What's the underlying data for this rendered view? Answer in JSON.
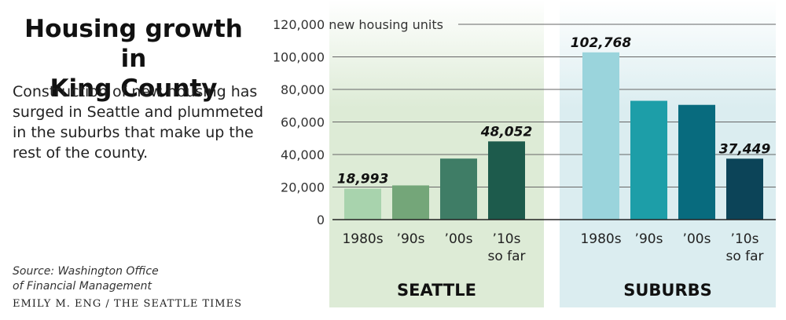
{
  "header": {
    "title_line1": "Housing growth in",
    "title_line2": "King County",
    "subtitle": "Construction of new housing has surged in Seattle and plummeted in the suburbs that make up the rest of the county."
  },
  "footer": {
    "source_line1": "Source: Washington Office",
    "source_line2": "of Financial Management",
    "credit": "EMILY M. ENG / THE SEATTLE TIMES"
  },
  "chart_data": {
    "type": "bar",
    "ylabel": "new housing units",
    "ylim": [
      0,
      120000
    ],
    "yticks": [
      0,
      20000,
      40000,
      60000,
      80000,
      100000,
      120000
    ],
    "ytick_labels": [
      "0",
      "20,000",
      "40,000",
      "60,000",
      "80,000",
      "100,000",
      "120,000"
    ],
    "grid": true,
    "groups": [
      {
        "name": "SEATTLE",
        "bg_color": "#ddebd6",
        "categories": [
          [
            "1980s"
          ],
          [
            "’90s"
          ],
          [
            "’00s"
          ],
          [
            "’10s",
            "so far"
          ]
        ],
        "values": [
          18993,
          21000,
          37500,
          48052
        ],
        "value_labels": [
          "18,993",
          "",
          "",
          "48,052"
        ],
        "colors": [
          "#a8d3ad",
          "#74a679",
          "#3f7d66",
          "#1d5b4c"
        ]
      },
      {
        "name": "SUBURBS",
        "bg_color": "#dbedf0",
        "categories": [
          [
            "1980s"
          ],
          [
            "’90s"
          ],
          [
            "’00s"
          ],
          [
            "’10s",
            "so far"
          ]
        ],
        "values": [
          102768,
          73000,
          70500,
          37449
        ],
        "value_labels": [
          "102,768",
          "",
          "",
          "37,449"
        ],
        "colors": [
          "#9ad4dc",
          "#1d9ea8",
          "#086b7e",
          "#0c4458"
        ]
      }
    ]
  }
}
